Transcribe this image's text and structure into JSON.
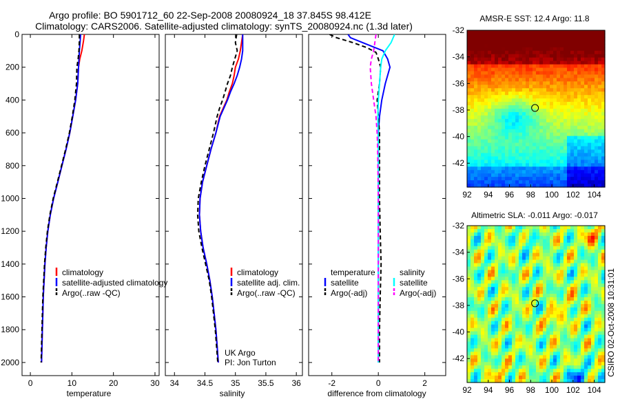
{
  "header": {
    "line1": "Argo profile: BO 5901712_60 22-Sep-2008 20080924_18 37.845S 98.412E",
    "line2": "Climatology: CARS2006. Satellite-adjusted climatology: synTS_20080924.nc (1.3d later)"
  },
  "side_stamp": "CSIRO 02-Oct-2008 10:31:01",
  "chart_data": [
    {
      "id": "temperature",
      "type": "line",
      "xlabel": "temperature",
      "xlim": [
        -2,
        31
      ],
      "xticks": [
        0,
        10,
        20,
        30
      ],
      "ylim": [
        2080,
        0
      ],
      "yticks": [
        0,
        200,
        400,
        600,
        800,
        1000,
        1200,
        1400,
        1600,
        1800,
        2000
      ],
      "legend": [
        {
          "label": "climatology",
          "color": "#ff0000",
          "style": "solid"
        },
        {
          "label": "satellite-adjusted climatology",
          "color": "#0000ff",
          "style": "solid"
        },
        {
          "label": "Argo(..raw -QC)",
          "color": "#000000",
          "style": "dashed"
        }
      ],
      "series": [
        {
          "name": "climatology",
          "color": "#ff0000",
          "dash": "",
          "points": [
            [
              13.0,
              0
            ],
            [
              12.8,
              40
            ],
            [
              12.4,
              100
            ],
            [
              11.9,
              150
            ],
            [
              11.6,
              200
            ],
            [
              11.4,
              300
            ],
            [
              10.9,
              400
            ],
            [
              10.2,
              500
            ],
            [
              9.5,
              600
            ],
            [
              8.6,
              700
            ],
            [
              7.6,
              800
            ],
            [
              6.6,
              900
            ],
            [
              5.6,
              1000
            ],
            [
              4.8,
              1100
            ],
            [
              4.2,
              1200
            ],
            [
              3.8,
              1300
            ],
            [
              3.5,
              1400
            ],
            [
              3.3,
              1500
            ],
            [
              3.1,
              1600
            ],
            [
              3.0,
              1700
            ],
            [
              2.9,
              1800
            ],
            [
              2.8,
              1900
            ],
            [
              2.7,
              2000
            ]
          ]
        },
        {
          "name": "satellite-adjusted climatology",
          "color": "#0000ff",
          "dash": "",
          "points": [
            [
              12.1,
              0
            ],
            [
              12.0,
              40
            ],
            [
              11.8,
              100
            ],
            [
              11.7,
              150
            ],
            [
              11.6,
              200
            ],
            [
              11.4,
              300
            ],
            [
              10.9,
              400
            ],
            [
              10.2,
              500
            ],
            [
              9.5,
              600
            ],
            [
              8.6,
              700
            ],
            [
              7.6,
              800
            ],
            [
              6.6,
              900
            ],
            [
              5.6,
              1000
            ],
            [
              4.8,
              1100
            ],
            [
              4.2,
              1200
            ],
            [
              3.8,
              1300
            ],
            [
              3.5,
              1400
            ],
            [
              3.3,
              1500
            ],
            [
              3.1,
              1600
            ],
            [
              3.0,
              1700
            ],
            [
              2.9,
              1800
            ],
            [
              2.8,
              1900
            ],
            [
              2.7,
              2000
            ]
          ]
        },
        {
          "name": "Argo(..raw -QC)",
          "color": "#000000",
          "dash": "6,4",
          "points": [
            [
              11.8,
              0
            ],
            [
              11.8,
              40
            ],
            [
              11.7,
              100
            ],
            [
              11.5,
              150
            ],
            [
              11.2,
              200
            ],
            [
              11.1,
              300
            ],
            [
              10.7,
              400
            ],
            [
              10.1,
              500
            ],
            [
              9.4,
              600
            ],
            [
              8.5,
              700
            ],
            [
              7.5,
              800
            ],
            [
              6.5,
              900
            ],
            [
              5.5,
              1000
            ],
            [
              4.7,
              1100
            ],
            [
              4.1,
              1200
            ],
            [
              3.7,
              1300
            ],
            [
              3.4,
              1400
            ],
            [
              3.2,
              1500
            ],
            [
              3.0,
              1600
            ],
            [
              2.9,
              1700
            ],
            [
              2.8,
              1800
            ],
            [
              2.7,
              1900
            ],
            [
              2.6,
              2000
            ]
          ]
        }
      ]
    },
    {
      "id": "salinity",
      "type": "line",
      "xlabel": "salinity",
      "xlim": [
        33.85,
        36.1
      ],
      "xticks": [
        34,
        34.5,
        35,
        35.5,
        36
      ],
      "ylim": [
        2080,
        0
      ],
      "legend": [
        {
          "label": "climatology",
          "color": "#ff0000",
          "style": "solid"
        },
        {
          "label": "satellite adj. clim.",
          "color": "#0000ff",
          "style": "solid"
        },
        {
          "label": "Argo(..raw -QC)",
          "color": "#000000",
          "style": "dashed"
        }
      ],
      "annotation": [
        "UK Argo",
        "PI: Jon Turton"
      ],
      "series": [
        {
          "name": "climatology",
          "color": "#ff0000",
          "dash": "",
          "points": [
            [
              35.12,
              0
            ],
            [
              35.1,
              50
            ],
            [
              35.08,
              100
            ],
            [
              35.05,
              150
            ],
            [
              35.0,
              200
            ],
            [
              34.98,
              250
            ],
            [
              34.95,
              300
            ],
            [
              34.9,
              350
            ],
            [
              34.86,
              400
            ],
            [
              34.8,
              450
            ],
            [
              34.74,
              500
            ],
            [
              34.68,
              600
            ],
            [
              34.6,
              700
            ],
            [
              34.53,
              800
            ],
            [
              34.46,
              900
            ],
            [
              34.42,
              1000
            ],
            [
              34.41,
              1100
            ],
            [
              34.43,
              1200
            ],
            [
              34.47,
              1300
            ],
            [
              34.53,
              1400
            ],
            [
              34.58,
              1500
            ],
            [
              34.62,
              1600
            ],
            [
              34.65,
              1700
            ],
            [
              34.68,
              1800
            ],
            [
              34.7,
              1900
            ],
            [
              34.72,
              2000
            ]
          ]
        },
        {
          "name": "satellite adj. clim.",
          "color": "#0000ff",
          "dash": "",
          "points": [
            [
              35.12,
              0
            ],
            [
              35.12,
              50
            ],
            [
              35.12,
              100
            ],
            [
              35.1,
              150
            ],
            [
              35.07,
              200
            ],
            [
              35.03,
              250
            ],
            [
              34.98,
              300
            ],
            [
              34.92,
              350
            ],
            [
              34.87,
              400
            ],
            [
              34.81,
              450
            ],
            [
              34.75,
              500
            ],
            [
              34.68,
              600
            ],
            [
              34.6,
              700
            ],
            [
              34.53,
              800
            ],
            [
              34.46,
              900
            ],
            [
              34.42,
              1000
            ],
            [
              34.41,
              1100
            ],
            [
              34.43,
              1200
            ],
            [
              34.47,
              1300
            ],
            [
              34.53,
              1400
            ],
            [
              34.58,
              1500
            ],
            [
              34.62,
              1600
            ],
            [
              34.65,
              1700
            ],
            [
              34.68,
              1800
            ],
            [
              34.7,
              1900
            ],
            [
              34.72,
              2000
            ]
          ]
        },
        {
          "name": "Argo(..raw -QC)",
          "color": "#000000",
          "dash": "6,4",
          "points": [
            [
              35.02,
              0
            ],
            [
              35.0,
              50
            ],
            [
              35.03,
              100
            ],
            [
              34.99,
              150
            ],
            [
              34.95,
              200
            ],
            [
              34.92,
              250
            ],
            [
              34.87,
              300
            ],
            [
              34.83,
              350
            ],
            [
              34.79,
              400
            ],
            [
              34.74,
              450
            ],
            [
              34.7,
              500
            ],
            [
              34.64,
              600
            ],
            [
              34.57,
              700
            ],
            [
              34.5,
              800
            ],
            [
              34.44,
              900
            ],
            [
              34.39,
              1000
            ],
            [
              34.38,
              1100
            ],
            [
              34.4,
              1200
            ],
            [
              34.45,
              1300
            ],
            [
              34.51,
              1400
            ],
            [
              34.57,
              1500
            ],
            [
              34.61,
              1600
            ],
            [
              34.64,
              1700
            ],
            [
              34.67,
              1800
            ],
            [
              34.69,
              1900
            ],
            [
              34.71,
              2000
            ]
          ]
        }
      ]
    },
    {
      "id": "difference",
      "type": "line",
      "xlabel": "difference from climatology",
      "xlim": [
        -3,
        2.9
      ],
      "xticks": [
        -2,
        0,
        2
      ],
      "ylim": [
        2080,
        0
      ],
      "legend_groups": [
        {
          "title": "temperature",
          "items": [
            {
              "label": "satellite",
              "color": "#0000ff",
              "style": "solid"
            },
            {
              "label": "Argo(-adj)",
              "color": "#000000",
              "style": "dashed"
            }
          ]
        },
        {
          "title": "salinity",
          "items": [
            {
              "label": "satellite",
              "color": "#00ffff",
              "style": "solid"
            },
            {
              "label": "Argo(-adj)",
              "color": "#ff00ff",
              "style": "dashed"
            }
          ]
        }
      ],
      "series": [
        {
          "name": "temperature satellite",
          "color": "#0000ff",
          "dash": "",
          "points": [
            [
              -1.3,
              0
            ],
            [
              -1.2,
              20
            ],
            [
              -0.5,
              60
            ],
            [
              0.2,
              100
            ],
            [
              0.4,
              150
            ],
            [
              0.5,
              200
            ],
            [
              0.3,
              300
            ],
            [
              0.15,
              400
            ],
            [
              0.05,
              500
            ],
            [
              0.0,
              600
            ],
            [
              0.0,
              1000
            ],
            [
              0.0,
              2000
            ]
          ]
        },
        {
          "name": "temperature Argo(-adj)",
          "color": "#000000",
          "dash": "6,4",
          "points": [
            [
              -2.1,
              0
            ],
            [
              -1.8,
              20
            ],
            [
              -1.1,
              50
            ],
            [
              -0.5,
              80
            ],
            [
              -0.1,
              110
            ],
            [
              0.0,
              150
            ],
            [
              0.1,
              200
            ],
            [
              0.05,
              300
            ],
            [
              -0.05,
              400
            ],
            [
              0.05,
              600
            ],
            [
              0.05,
              800
            ],
            [
              0.05,
              1000
            ],
            [
              0.08,
              1200
            ],
            [
              0.12,
              1400
            ],
            [
              0.08,
              1600
            ],
            [
              0.05,
              1800
            ],
            [
              0.05,
              2000
            ]
          ]
        },
        {
          "name": "salinity satellite",
          "color": "#00ffff",
          "dash": "",
          "points": [
            [
              0.7,
              0
            ],
            [
              0.55,
              50
            ],
            [
              0.3,
              100
            ],
            [
              0.15,
              150
            ],
            [
              0.1,
              200
            ],
            [
              0.05,
              300
            ],
            [
              0.0,
              400
            ],
            [
              -0.02,
              500
            ],
            [
              0.0,
              700
            ],
            [
              0.0,
              1000
            ],
            [
              0.0,
              2000
            ]
          ]
        },
        {
          "name": "salinity Argo(-adj)",
          "color": "#ff00ff",
          "dash": "6,4",
          "points": [
            [
              -0.1,
              0
            ],
            [
              -0.15,
              50
            ],
            [
              -0.2,
              100
            ],
            [
              -0.3,
              150
            ],
            [
              -0.35,
              200
            ],
            [
              -0.3,
              300
            ],
            [
              -0.2,
              400
            ],
            [
              -0.1,
              500
            ],
            [
              -0.05,
              600
            ],
            [
              -0.03,
              700
            ],
            [
              -0.02,
              800
            ],
            [
              0.0,
              1000
            ],
            [
              0.0,
              1500
            ],
            [
              0.0,
              2000
            ]
          ]
        }
      ]
    },
    {
      "id": "sst_map",
      "type": "heatmap",
      "title": "AMSR-E SST: 12.4 Argo: 11.8",
      "xlim": [
        92,
        105
      ],
      "xticks": [
        92,
        94,
        96,
        98,
        100,
        102,
        104
      ],
      "ylim": [
        -43.8,
        -32
      ],
      "yticks": [
        -32,
        -34,
        -36,
        -38,
        -40,
        -42
      ],
      "marker": {
        "lon": 98.412,
        "lat": -37.845
      },
      "colormap": "jet"
    },
    {
      "id": "sla_map",
      "type": "heatmap",
      "title": "Altimetric SLA: -0.011 Argo: -0.017",
      "xlim": [
        92,
        105
      ],
      "xticks": [
        92,
        94,
        96,
        98,
        100,
        102,
        104
      ],
      "ylim": [
        -43.8,
        -32
      ],
      "yticks": [
        -32,
        -34,
        -36,
        -38,
        -40,
        -42
      ],
      "marker": {
        "lon": 98.412,
        "lat": -37.845
      },
      "colormap": "jet"
    }
  ]
}
